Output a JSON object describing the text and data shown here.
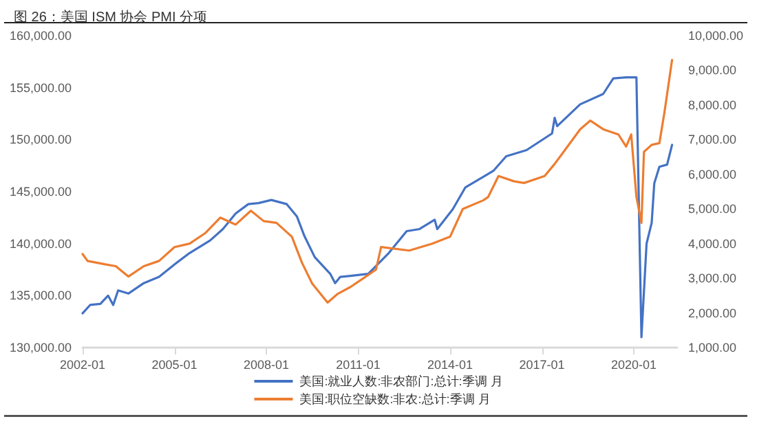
{
  "chart_data": {
    "type": "line",
    "title": "图 26：美国 ISM 协会 PMI 分项",
    "xlim": [
      "2002-01",
      "2021-06"
    ],
    "xticks": [
      "2002-01",
      "2005-01",
      "2008-01",
      "2011-01",
      "2014-01",
      "2017-01",
      "2020-01"
    ],
    "ylim": [
      130000,
      160000
    ],
    "yticks": [
      {
        "value": 130000,
        "label": "130,000.00"
      },
      {
        "value": 135000,
        "label": "135,000.00"
      },
      {
        "value": 140000,
        "label": "140,000.00"
      },
      {
        "value": 145000,
        "label": "145,000.00"
      },
      {
        "value": 150000,
        "label": "150,000.00"
      },
      {
        "value": 155000,
        "label": "155,000.00"
      },
      {
        "value": 160000,
        "label": "160,000.00"
      }
    ],
    "y2lim": [
      1000,
      10000
    ],
    "y2ticks": [
      {
        "value": 1000,
        "label": "1,000.00"
      },
      {
        "value": 2000,
        "label": "2,000.00"
      },
      {
        "value": 3000,
        "label": "3,000.00"
      },
      {
        "value": 4000,
        "label": "4,000.00"
      },
      {
        "value": 5000,
        "label": "5,000.00"
      },
      {
        "value": 6000,
        "label": "6,000.00"
      },
      {
        "value": 7000,
        "label": "7,000.00"
      },
      {
        "value": 8000,
        "label": "8,000.00"
      },
      {
        "value": 9000,
        "label": "9,000.00"
      },
      {
        "value": 10000,
        "label": "10,000.00"
      }
    ],
    "grid": false,
    "legend": "bottom",
    "marker": "none",
    "line_style": "solid",
    "series": [
      {
        "name": "美国:就业人数:非农部门:总计:季调 月",
        "color": "#4472c4",
        "x": [
          "2002-01",
          "2002-04",
          "2002-08",
          "2002-11",
          "2003-01",
          "2003-03",
          "2003-07",
          "2004-01",
          "2004-07",
          "2005-01",
          "2005-07",
          "2006-03",
          "2006-08",
          "2007-01",
          "2007-06",
          "2007-10",
          "2008-03",
          "2008-09",
          "2009-01",
          "2009-04",
          "2009-08",
          "2010-02",
          "2010-04",
          "2010-06",
          "2010-10",
          "2011-05",
          "2012-01",
          "2012-08",
          "2013-01",
          "2013-07",
          "2013-08",
          "2014-02",
          "2014-07",
          "2015-06",
          "2015-11",
          "2016-07",
          "2017-05",
          "2017-06",
          "2017-07",
          "2018-04",
          "2019-01",
          "2019-05",
          "2019-10",
          "2020-02",
          "2020-04",
          "2020-06",
          "2020-08",
          "2020-09",
          "2020-11",
          "2021-02",
          "2021-04"
        ],
        "values": [
          133300,
          134100,
          134200,
          135000,
          134100,
          135500,
          135200,
          136200,
          136800,
          138000,
          139100,
          140300,
          141400,
          142900,
          143800,
          143900,
          144200,
          143800,
          142600,
          140700,
          138700,
          137100,
          136200,
          136800,
          136900,
          137100,
          139100,
          141200,
          141400,
          142300,
          141400,
          143300,
          145400,
          147000,
          148400,
          149000,
          150600,
          152100,
          151300,
          153400,
          154400,
          155900,
          156000,
          156000,
          131000,
          140000,
          142000,
          145800,
          147400,
          147600,
          149500
        ]
      },
      {
        "name": "美国:职位空缺数:非农:总计:季调 月",
        "color": "#ed7d31",
        "axis": "y2",
        "x": [
          "2002-01",
          "2002-03",
          "2002-10",
          "2003-02",
          "2003-07",
          "2004-01",
          "2004-07",
          "2005-01",
          "2005-07",
          "2006-01",
          "2006-07",
          "2007-01",
          "2007-07",
          "2007-12",
          "2008-05",
          "2008-11",
          "2009-03",
          "2009-07",
          "2010-01",
          "2010-05",
          "2010-10",
          "2011-02",
          "2011-08",
          "2011-10",
          "2012-09",
          "2013-06",
          "2014-01",
          "2014-06",
          "2015-02",
          "2015-04",
          "2015-08",
          "2016-02",
          "2016-06",
          "2017-02",
          "2017-06",
          "2017-10",
          "2018-04",
          "2018-08",
          "2019-01",
          "2019-07",
          "2019-10",
          "2019-12",
          "2020-02",
          "2020-04",
          "2020-05",
          "2020-08",
          "2020-11",
          "2021-01",
          "2021-04"
        ],
        "values": [
          3700,
          3500,
          3400,
          3350,
          3050,
          3350,
          3500,
          3900,
          4000,
          4300,
          4750,
          4550,
          4950,
          4650,
          4600,
          4200,
          3450,
          2850,
          2300,
          2550,
          2750,
          2950,
          3250,
          3900,
          3800,
          4000,
          4200,
          5000,
          5250,
          5350,
          5950,
          5800,
          5750,
          5950,
          6300,
          6700,
          7300,
          7550,
          7300,
          7150,
          6800,
          7150,
          5350,
          4600,
          6650,
          6850,
          6900,
          7800,
          9300
        ]
      }
    ]
  }
}
